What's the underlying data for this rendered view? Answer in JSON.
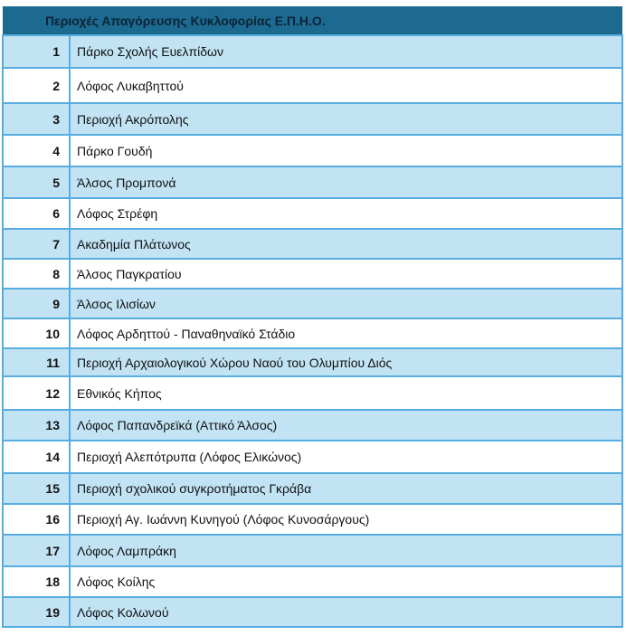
{
  "table": {
    "title": "Περιοχές Απαγόρευσης Κυκλοφορίας Ε.Π.Η.Ο.",
    "colors": {
      "header_bg": "#1d6a90",
      "row_alt": "#c2e3f4",
      "border": "#57ace0"
    },
    "rows": [
      {
        "num": "1",
        "name": "Πάρκο Σχολής Ευελπίδων"
      },
      {
        "num": "2",
        "name": "Λόφος Λυκαβηττού"
      },
      {
        "num": "3",
        "name": "Περιοχή Ακρόπολης"
      },
      {
        "num": "4",
        "name": "Πάρκο Γουδή"
      },
      {
        "num": "5",
        "name": "Άλσος Προμπονά"
      },
      {
        "num": "6",
        "name": "Λόφος Στρέφη"
      },
      {
        "num": "7",
        "name": "Ακαδημία Πλάτωνος"
      },
      {
        "num": "8",
        "name": "Άλσος Παγκρατίου"
      },
      {
        "num": "9",
        "name": "Άλσος Ιλισίων"
      },
      {
        "num": "10",
        "name": "Λόφος Αρδηττού - Παναθηναϊκό Στάδιο"
      },
      {
        "num": "11",
        "name": "Περιοχή Αρχαιολογικού Χώρου Ναού του Ολυμπίου Διός"
      },
      {
        "num": "12",
        "name": "Εθνικός Κήπος"
      },
      {
        "num": "13",
        "name": "Λόφος Παπανδρεϊκά (Αττικό Άλσος)"
      },
      {
        "num": "14",
        "name": "Περιοχή Αλεπότρυπα (Λόφος Ελικώνος)"
      },
      {
        "num": "15",
        "name": "Περιοχή σχολικού συγκροτήματος Γκράβα"
      },
      {
        "num": "16",
        "name": "Περιοχή Αγ. Ιωάννη Κυνηγού (Λόφος Κυνοσάργους)"
      },
      {
        "num": "17",
        "name": "Λόφος Λαμπράκη"
      },
      {
        "num": "18",
        "name": "Λόφος Κοίλης"
      },
      {
        "num": "19",
        "name": "Λόφος Κολωνού"
      }
    ]
  }
}
